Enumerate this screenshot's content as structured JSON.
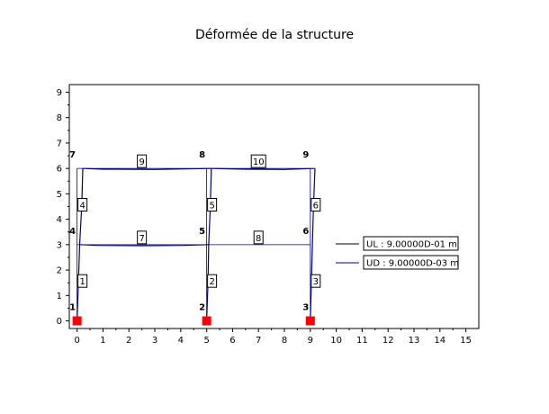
{
  "title": "Déformée de la structure",
  "axes": {
    "x_range": [
      -0.3,
      15.5
    ],
    "y_range": [
      -0.3,
      9.3
    ],
    "x_ticks": [
      "0",
      "1",
      "2",
      "3",
      "4",
      "5",
      "6",
      "7",
      "8",
      "9",
      "10",
      "11",
      "12",
      "13",
      "14",
      "15"
    ],
    "y_ticks": [
      "0",
      "1",
      "2",
      "3",
      "4",
      "5",
      "6",
      "7",
      "8",
      "9"
    ]
  },
  "colors": {
    "structure": "#000000",
    "deformed": "#00008b",
    "support": "#ff0000"
  },
  "nodes": [
    {
      "id": "1",
      "x": 0,
      "y": 0
    },
    {
      "id": "2",
      "x": 5,
      "y": 0
    },
    {
      "id": "3",
      "x": 9,
      "y": 0
    },
    {
      "id": "4",
      "x": 0,
      "y": 3
    },
    {
      "id": "5",
      "x": 5,
      "y": 3
    },
    {
      "id": "6",
      "x": 9,
      "y": 3
    },
    {
      "id": "7",
      "x": 0,
      "y": 6
    },
    {
      "id": "8",
      "x": 5,
      "y": 6
    },
    {
      "id": "9",
      "x": 9,
      "y": 6
    }
  ],
  "elements": [
    {
      "id": "1",
      "from": "1",
      "to": "4"
    },
    {
      "id": "2",
      "from": "2",
      "to": "5"
    },
    {
      "id": "3",
      "from": "3",
      "to": "6"
    },
    {
      "id": "4",
      "from": "4",
      "to": "7"
    },
    {
      "id": "5",
      "from": "5",
      "to": "8"
    },
    {
      "id": "6",
      "from": "6",
      "to": "9"
    },
    {
      "id": "7",
      "from": "4",
      "to": "5"
    },
    {
      "id": "8",
      "from": "5",
      "to": "6"
    },
    {
      "id": "9",
      "from": "7",
      "to": "8"
    },
    {
      "id": "10",
      "from": "8",
      "to": "9"
    }
  ],
  "deformed_lines": [
    [
      [
        0,
        0
      ],
      [
        0.05,
        1.5
      ],
      [
        0.1,
        3.0
      ],
      [
        0.18,
        4.5
      ],
      [
        0.22,
        6.0
      ]
    ],
    [
      [
        5,
        0
      ],
      [
        5.05,
        1.5
      ],
      [
        5.08,
        3.0
      ],
      [
        5.14,
        4.5
      ],
      [
        5.18,
        6.0
      ]
    ],
    [
      [
        9,
        0
      ],
      [
        9.04,
        1.5
      ],
      [
        9.08,
        3.0
      ],
      [
        9.12,
        4.5
      ],
      [
        9.18,
        6.0
      ]
    ],
    [
      [
        0.1,
        3.0
      ],
      [
        0.8,
        2.97
      ],
      [
        2.5,
        2.96
      ],
      [
        4.1,
        2.97
      ],
      [
        5.08,
        3.0
      ]
    ],
    [
      [
        0.22,
        6.0
      ],
      [
        1.0,
        5.97
      ],
      [
        3.0,
        5.96
      ],
      [
        5.18,
        6.0
      ]
    ],
    [
      [
        5.18,
        6.0
      ],
      [
        6.5,
        5.97
      ],
      [
        8.0,
        5.96
      ],
      [
        9.18,
        6.0
      ]
    ]
  ],
  "supports": [
    "1",
    "2",
    "3"
  ],
  "legend": {
    "items": [
      {
        "label": "UL : 9.00000D-01 m",
        "color": "#000000"
      },
      {
        "label": "UD : 9.00000D-03 m",
        "color": "#00008b"
      }
    ]
  }
}
